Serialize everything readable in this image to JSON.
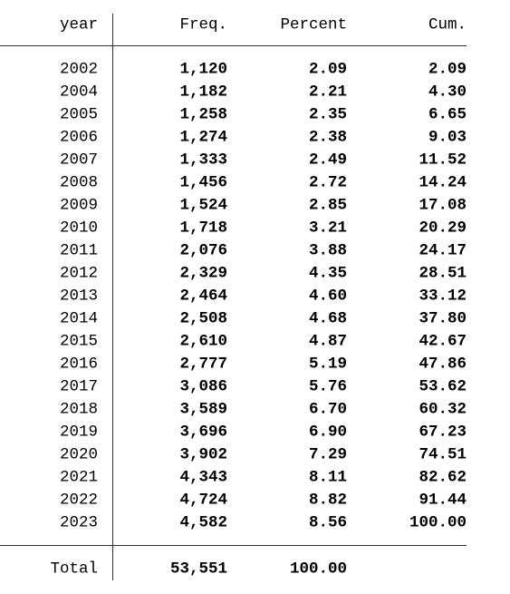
{
  "table": {
    "header": [
      "year",
      "Freq.",
      "Percent",
      "Cum."
    ],
    "rows": [
      [
        "2002",
        "1,120",
        "2.09",
        "2.09"
      ],
      [
        "2004",
        "1,182",
        "2.21",
        "4.30"
      ],
      [
        "2005",
        "1,258",
        "2.35",
        "6.65"
      ],
      [
        "2006",
        "1,274",
        "2.38",
        "9.03"
      ],
      [
        "2007",
        "1,333",
        "2.49",
        "11.52"
      ],
      [
        "2008",
        "1,456",
        "2.72",
        "14.24"
      ],
      [
        "2009",
        "1,524",
        "2.85",
        "17.08"
      ],
      [
        "2010",
        "1,718",
        "3.21",
        "20.29"
      ],
      [
        "2011",
        "2,076",
        "3.88",
        "24.17"
      ],
      [
        "2012",
        "2,329",
        "4.35",
        "28.51"
      ],
      [
        "2013",
        "2,464",
        "4.60",
        "33.12"
      ],
      [
        "2014",
        "2,508",
        "4.68",
        "37.80"
      ],
      [
        "2015",
        "2,610",
        "4.87",
        "42.67"
      ],
      [
        "2016",
        "2,777",
        "5.19",
        "47.86"
      ],
      [
        "2017",
        "3,086",
        "5.76",
        "53.62"
      ],
      [
        "2018",
        "3,589",
        "6.70",
        "60.32"
      ],
      [
        "2019",
        "3,696",
        "6.90",
        "67.23"
      ],
      [
        "2020",
        "3,902",
        "7.29",
        "74.51"
      ],
      [
        "2021",
        "4,343",
        "8.11",
        "82.62"
      ],
      [
        "2022",
        "4,724",
        "8.82",
        "91.44"
      ],
      [
        "2023",
        "4,582",
        "8.56",
        "100.00"
      ]
    ],
    "total": [
      "Total",
      "53,551",
      "100.00"
    ]
  }
}
